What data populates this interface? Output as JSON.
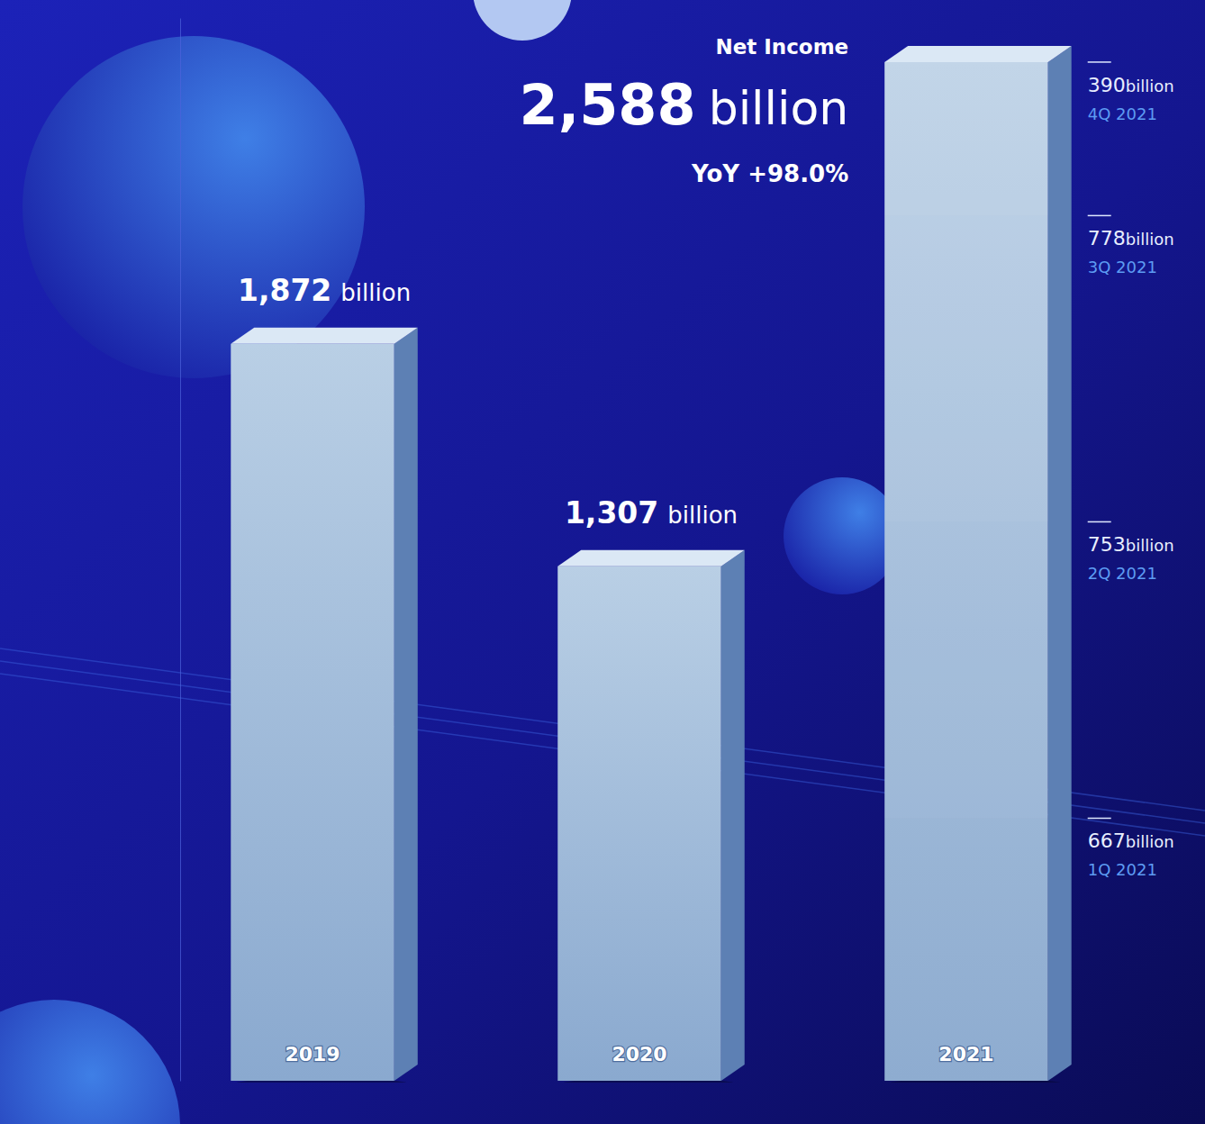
{
  "chart_data": {
    "type": "bar",
    "title": "Net Income",
    "annotation": "YoY +98.0%",
    "categories": [
      "2019",
      "2020",
      "2021"
    ],
    "values": [
      1872,
      1307,
      2588
    ],
    "value_labels": [
      "1,872",
      "1,307",
      "2,588"
    ],
    "unit": "billion",
    "color": "#b9cfe5",
    "data_labels": true,
    "ylim": [
      0,
      2700
    ],
    "yticks": [],
    "tick_labels": false,
    "grid": false,
    "quarters": {
      "categories": [
        "1Q 2021",
        "2Q 2021",
        "3Q 2021",
        "4Q 2021"
      ],
      "values": [
        667,
        753,
        778,
        390
      ],
      "stacked": true
    }
  }
}
